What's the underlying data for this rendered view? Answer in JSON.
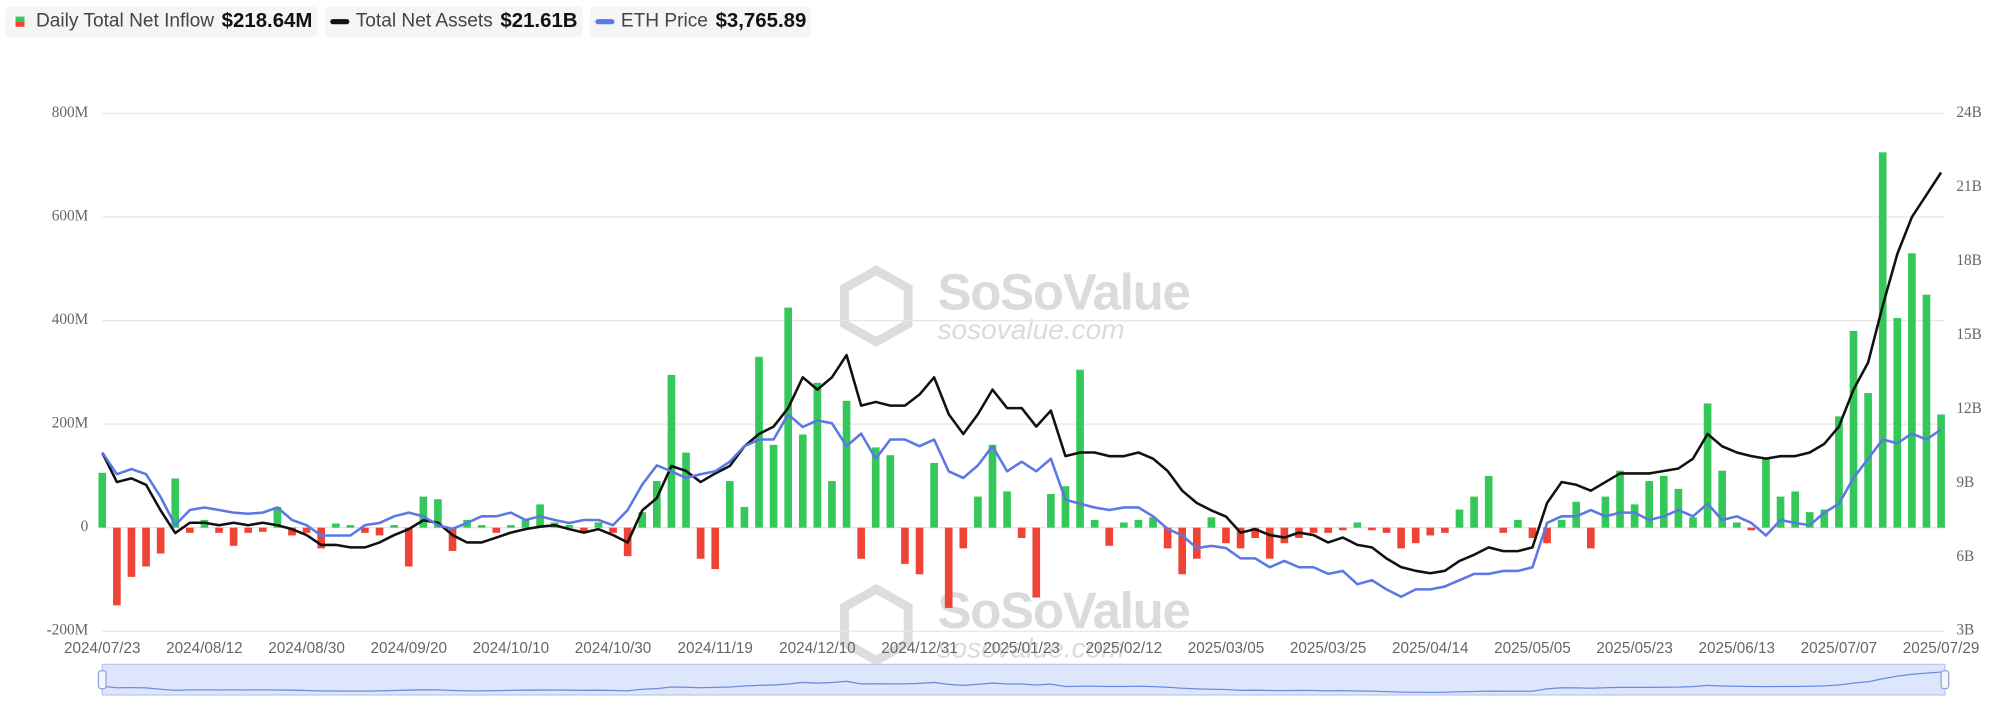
{
  "chart_data": {
    "type": "bar",
    "watermark": {
      "name": "SoSoValue",
      "url": "sosovalue.com"
    },
    "categories": [
      "2024/07/23",
      null,
      null,
      null,
      null,
      null,
      null,
      "2024/08/12",
      null,
      null,
      null,
      null,
      null,
      null,
      "2024/08/30",
      null,
      null,
      null,
      null,
      null,
      null,
      "2024/09/20",
      null,
      null,
      null,
      null,
      null,
      null,
      "2024/10/10",
      null,
      null,
      null,
      null,
      null,
      null,
      "2024/10/30",
      null,
      null,
      null,
      null,
      null,
      null,
      "2024/11/19",
      null,
      null,
      null,
      null,
      null,
      null,
      "2024/12/10",
      null,
      null,
      null,
      null,
      null,
      null,
      "2024/12/31",
      null,
      null,
      null,
      null,
      null,
      null,
      "2025/01/23",
      null,
      null,
      null,
      null,
      null,
      null,
      "2025/02/12",
      null,
      null,
      null,
      null,
      null,
      null,
      "2025/03/05",
      null,
      null,
      null,
      null,
      null,
      null,
      "2025/03/25",
      null,
      null,
      null,
      null,
      null,
      null,
      "2025/04/14",
      null,
      null,
      null,
      null,
      null,
      null,
      "2025/05/05",
      null,
      null,
      null,
      null,
      null,
      null,
      "2025/05/23",
      null,
      null,
      null,
      null,
      null,
      null,
      "2025/06/13",
      null,
      null,
      null,
      null,
      null,
      null,
      "2025/07/07",
      null,
      null,
      null,
      null,
      null,
      null,
      "2025/07/29"
    ],
    "series": [
      {
        "name": "Daily Total Net Inflow",
        "current": "$218.64M",
        "type": "bar",
        "color": "#34c759",
        "negative_color": "#ee4436",
        "values": [
          106,
          -150,
          -95,
          -75,
          -50,
          95,
          -10,
          15,
          -10,
          -35,
          -10,
          -8,
          40,
          -15,
          -10,
          -40,
          8,
          5,
          -10,
          -15,
          5,
          -75,
          60,
          55,
          -45,
          15,
          5,
          -10,
          5,
          15,
          45,
          10,
          5,
          -10,
          10,
          -10,
          -55,
          30,
          90,
          295,
          145,
          -60,
          -80,
          90,
          40,
          330,
          160,
          425,
          180,
          280,
          90,
          245,
          -60,
          155,
          140,
          -70,
          -90,
          125,
          -155,
          -40,
          60,
          160,
          70,
          -20,
          -135,
          65,
          80,
          305,
          15,
          -35,
          10,
          15,
          20,
          -40,
          -90,
          -60,
          20,
          -30,
          -40,
          -20,
          -60,
          -30,
          -20,
          -10,
          -10,
          -5,
          10,
          -5,
          -10,
          -40,
          -30,
          -15,
          -10,
          35,
          60,
          100,
          -10,
          15,
          -20,
          -30,
          15,
          50,
          -40,
          60,
          110,
          45,
          90,
          100,
          75,
          20,
          240,
          110,
          10,
          -5,
          135,
          60,
          70,
          30,
          35,
          215,
          380,
          260,
          725,
          405,
          530,
          450,
          218.64
        ]
      },
      {
        "name": "Total Net Assets",
        "current": "$21.61B",
        "type": "line",
        "axis": "y2",
        "color": "#111111",
        "values": [
          10.24,
          9.05,
          9.2,
          8.94,
          7.9,
          6.98,
          7.4,
          7.4,
          7.3,
          7.4,
          7.3,
          7.4,
          7.3,
          7.14,
          6.9,
          6.5,
          6.5,
          6.4,
          6.4,
          6.6,
          6.9,
          7.14,
          7.5,
          7.4,
          6.9,
          6.6,
          6.6,
          6.8,
          7.0,
          7.14,
          7.24,
          7.3,
          7.14,
          7.0,
          7.14,
          6.9,
          6.6,
          7.9,
          8.4,
          9.7,
          9.5,
          9.05,
          9.4,
          9.7,
          10.5,
          11.0,
          11.3,
          12.05,
          13.3,
          12.8,
          13.3,
          14.2,
          12.15,
          12.3,
          12.15,
          12.15,
          12.6,
          13.3,
          11.8,
          11.0,
          11.8,
          12.8,
          12.05,
          12.05,
          11.3,
          11.95,
          10.1,
          10.25,
          10.25,
          10.1,
          10.1,
          10.25,
          10.0,
          9.5,
          8.7,
          8.2,
          7.9,
          7.65,
          7.0,
          7.14,
          6.9,
          6.8,
          7.0,
          6.9,
          6.6,
          6.8,
          6.5,
          6.4,
          5.95,
          5.6,
          5.45,
          5.35,
          5.45,
          5.85,
          6.1,
          6.4,
          6.25,
          6.25,
          6.4,
          8.2,
          9.05,
          8.94,
          8.7,
          9.05,
          9.4,
          9.4,
          9.4,
          9.5,
          9.6,
          10.0,
          11.0,
          10.5,
          10.25,
          10.1,
          10.0,
          10.1,
          10.1,
          10.25,
          10.6,
          11.3,
          12.8,
          13.9,
          16.2,
          18.3,
          19.8,
          20.7,
          21.61
        ]
      },
      {
        "name": "ETH Price",
        "current": "$3,765.89",
        "type": "line",
        "axis": "hidden",
        "color": "#5b78e6",
        "values": [
          3455,
          3160,
          3230,
          3160,
          2850,
          2470,
          2675,
          2710,
          2675,
          2640,
          2625,
          2640,
          2710,
          2540,
          2470,
          2330,
          2330,
          2330,
          2470,
          2500,
          2590,
          2640,
          2590,
          2470,
          2420,
          2500,
          2590,
          2590,
          2640,
          2540,
          2590,
          2540,
          2500,
          2540,
          2540,
          2470,
          2675,
          3020,
          3280,
          3200,
          3110,
          3160,
          3200,
          3330,
          3540,
          3630,
          3630,
          3970,
          3800,
          3890,
          3850,
          3540,
          3710,
          3370,
          3630,
          3630,
          3540,
          3630,
          3200,
          3110,
          3280,
          3540,
          3200,
          3330,
          3200,
          3370,
          2815,
          2760,
          2710,
          2675,
          2710,
          2710,
          2590,
          2420,
          2330,
          2160,
          2190,
          2160,
          2020,
          2020,
          1900,
          1985,
          1900,
          1900,
          1810,
          1850,
          1670,
          1725,
          1600,
          1500,
          1600,
          1600,
          1640,
          1725,
          1810,
          1810,
          1850,
          1850,
          1900,
          2500,
          2590,
          2590,
          2675,
          2590,
          2640,
          2640,
          2540,
          2590,
          2675,
          2590,
          2760,
          2540,
          2590,
          2500,
          2330,
          2540,
          2500,
          2470,
          2640,
          2760,
          3110,
          3370,
          3630,
          3580,
          3710,
          3630,
          3765.89
        ]
      }
    ],
    "ylim": [
      -200,
      800
    ],
    "yticks": [
      {
        "value": -200,
        "label": "-200M"
      },
      0,
      {
        "value": 200,
        "label": "200M"
      },
      {
        "value": 400,
        "label": "400M"
      },
      {
        "value": 600,
        "label": "600M"
      },
      {
        "value": 800,
        "label": "800M"
      }
    ],
    "y2lim": [
      3,
      24
    ],
    "y2ticks": [
      {
        "value": 3,
        "label": "3B"
      },
      {
        "value": 6,
        "label": "6B"
      },
      {
        "value": 9,
        "label": "9B"
      },
      {
        "value": 12,
        "label": "12B"
      },
      {
        "value": 15,
        "label": "15B"
      },
      {
        "value": 18,
        "label": "18B"
      },
      {
        "value": 21,
        "label": "21B"
      },
      {
        "value": 24,
        "label": "24B"
      }
    ],
    "grid": true,
    "legend": "top-left"
  }
}
